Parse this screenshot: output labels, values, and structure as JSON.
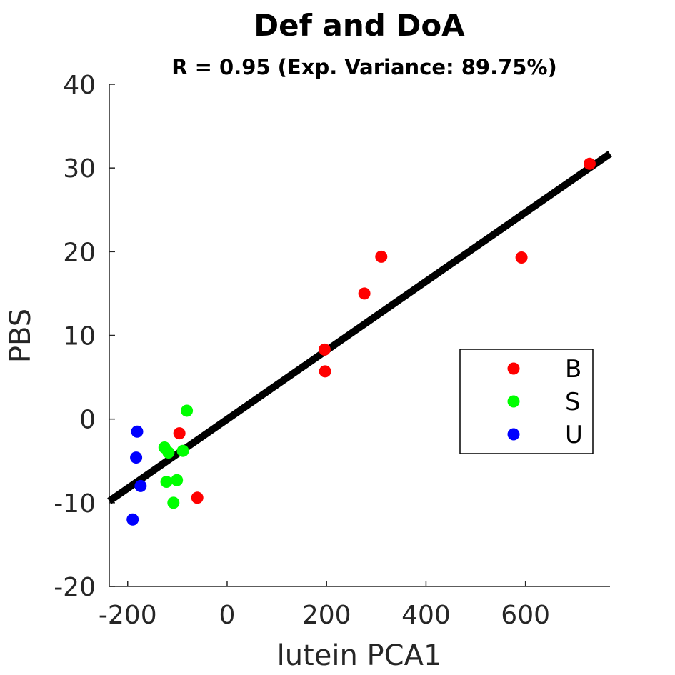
{
  "chart_data": {
    "type": "scatter",
    "title": "Def and DoA",
    "subtitle": "R = 0.95 (Exp. Variance: 89.75%)",
    "xlabel": "lutein PCA1",
    "ylabel": "PBS",
    "xlim": [
      -237,
      770
    ],
    "ylim": [
      -20,
      40
    ],
    "xticks": [
      -200,
      0,
      200,
      400,
      600
    ],
    "yticks": [
      -20,
      -10,
      0,
      10,
      20,
      30,
      40
    ],
    "grid": false,
    "legend_position": "right",
    "series": [
      {
        "name": "B",
        "color": "#ff0000",
        "points": [
          {
            "x": 196,
            "y": 8.3
          },
          {
            "x": 197,
            "y": 5.7
          },
          {
            "x": 276,
            "y": 15.0
          },
          {
            "x": 310,
            "y": 19.4
          },
          {
            "x": 592,
            "y": 19.3
          },
          {
            "x": 729,
            "y": 30.5
          },
          {
            "x": -96,
            "y": -1.7
          },
          {
            "x": -60,
            "y": -9.4
          }
        ]
      },
      {
        "name": "S",
        "color": "#00ff00",
        "points": [
          {
            "x": -81,
            "y": 1.0
          },
          {
            "x": -126,
            "y": -3.4
          },
          {
            "x": -118,
            "y": -4.0
          },
          {
            "x": -89,
            "y": -3.8
          },
          {
            "x": -122,
            "y": -7.5
          },
          {
            "x": -101,
            "y": -7.3
          },
          {
            "x": -108,
            "y": -10.0
          }
        ]
      },
      {
        "name": "U",
        "color": "#0000ff",
        "points": [
          {
            "x": -181,
            "y": -1.5
          },
          {
            "x": -183,
            "y": -4.6
          },
          {
            "x": -174,
            "y": -8.0
          },
          {
            "x": -190,
            "y": -12.0
          }
        ]
      }
    ],
    "fit_line": {
      "color": "#000000",
      "points": [
        {
          "x": -237,
          "y": -9.8
        },
        {
          "x": 770,
          "y": 31.7
        }
      ]
    }
  }
}
